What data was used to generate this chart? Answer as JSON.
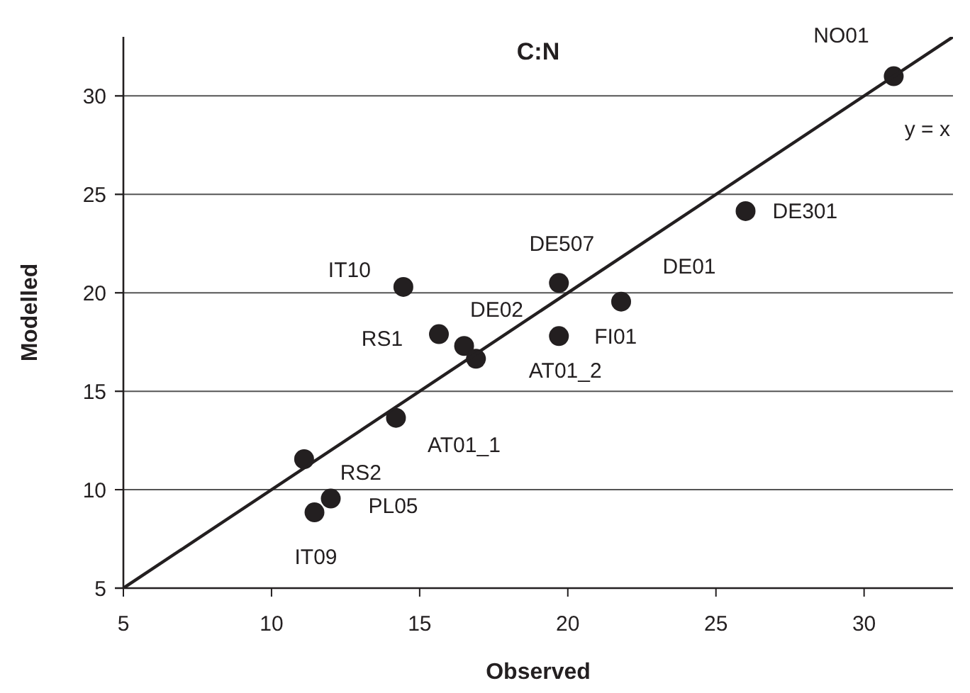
{
  "chart_data": {
    "type": "scatter",
    "title": "C:N",
    "xlabel": "Observed",
    "ylabel": "Modelled",
    "xlim": [
      5,
      33
    ],
    "ylim": [
      5,
      33
    ],
    "xticks": [
      5,
      10,
      15,
      20,
      25,
      30
    ],
    "yticks": [
      5,
      10,
      15,
      20,
      25,
      30
    ],
    "grid": "y",
    "series": [
      {
        "marker": "circle",
        "color": "#231f20",
        "x": [
          31.0,
          26.0,
          19.7,
          21.8,
          14.45,
          15.65,
          16.5,
          16.9,
          19.7,
          14.2,
          11.1,
          12.0,
          11.45
        ],
        "values": [
          31.0,
          24.15,
          20.5,
          19.55,
          20.3,
          17.9,
          17.3,
          16.65,
          17.8,
          13.65,
          11.55,
          9.55,
          8.85
        ]
      },
      {
        "type": "line",
        "name": "y = x",
        "color": "#231f20",
        "line_style": "solid",
        "x": [
          5,
          33
        ],
        "values": [
          5,
          33
        ]
      }
    ],
    "annotations": [
      {
        "text": "NO01",
        "x": 31.0,
        "y": 31.0
      },
      {
        "text": "DE301",
        "x": 26.0,
        "y": 24.15
      },
      {
        "text": "DE507",
        "x": 19.7,
        "y": 20.5
      },
      {
        "text": "DE01",
        "x": 21.8,
        "y": 19.55
      },
      {
        "text": "IT10",
        "x": 14.45,
        "y": 20.3
      },
      {
        "text": "RS1",
        "x": 15.65,
        "y": 17.9
      },
      {
        "text": "DE02",
        "x": 16.5,
        "y": 17.3
      },
      {
        "text": "AT01_2",
        "x": 16.9,
        "y": 16.65
      },
      {
        "text": "FI01",
        "x": 19.7,
        "y": 17.8
      },
      {
        "text": "AT01_1",
        "x": 14.2,
        "y": 13.65
      },
      {
        "text": "RS2",
        "x": 11.1,
        "y": 11.55
      },
      {
        "text": "PL05",
        "x": 12.0,
        "y": 9.55
      },
      {
        "text": "IT09",
        "x": 11.45,
        "y": 8.85
      }
    ]
  }
}
